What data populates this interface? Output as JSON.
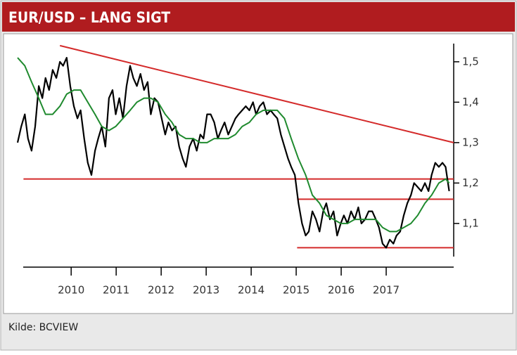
{
  "chart_data": {
    "type": "line",
    "title": "EUR/USD – LANG SIGT",
    "source": "Kilde: BCVIEW",
    "xlim": [
      2008.7,
      2018.5
    ],
    "ylim": [
      1.018,
      1.545
    ],
    "xticks": [
      2010,
      2011,
      2012,
      2013,
      2014,
      2015,
      2016,
      2017
    ],
    "yticks": [
      {
        "value": 1.1,
        "label": "1,1"
      },
      {
        "value": 1.2,
        "label": "1,2"
      },
      {
        "value": 1.3,
        "label": "1,3"
      },
      {
        "value": 1.4,
        "label": "1,4"
      },
      {
        "value": 1.5,
        "label": "1,5"
      }
    ],
    "series": [
      {
        "color": "#000000",
        "x": [
          2008.81,
          2008.89,
          2008.97,
          2009.04,
          2009.12,
          2009.2,
          2009.28,
          2009.36,
          2009.43,
          2009.51,
          2009.59,
          2009.67,
          2009.75,
          2009.82,
          2009.9,
          2009.98,
          2010.06,
          2010.14,
          2010.21,
          2010.29,
          2010.37,
          2010.45,
          2010.53,
          2010.6,
          2010.68,
          2010.76,
          2010.84,
          2010.92,
          2010.99,
          2011.07,
          2011.15,
          2011.23,
          2011.31,
          2011.38,
          2011.46,
          2011.54,
          2011.62,
          2011.7,
          2011.77,
          2011.85,
          2011.93,
          2012.01,
          2012.09,
          2012.16,
          2012.24,
          2012.32,
          2012.4,
          2012.48,
          2012.55,
          2012.63,
          2012.71,
          2012.79,
          2012.87,
          2012.94,
          2013.02,
          2013.1,
          2013.18,
          2013.26,
          2013.33,
          2013.41,
          2013.49,
          2013.57,
          2013.65,
          2013.72,
          2013.8,
          2013.88,
          2013.96,
          2014.04,
          2014.11,
          2014.19,
          2014.27,
          2014.35,
          2014.43,
          2014.5,
          2014.58,
          2014.66,
          2014.74,
          2014.82,
          2014.89,
          2014.97,
          2015.05,
          2015.13,
          2015.21,
          2015.28,
          2015.36,
          2015.44,
          2015.52,
          2015.6,
          2015.67,
          2015.75,
          2015.83,
          2015.91,
          2015.99,
          2016.06,
          2016.14,
          2016.22,
          2016.3,
          2016.38,
          2016.45,
          2016.53,
          2016.61,
          2016.69,
          2016.77,
          2016.84,
          2016.92,
          2017.0,
          2017.08,
          2017.16,
          2017.23,
          2017.31,
          2017.39,
          2017.47,
          2017.55,
          2017.62,
          2017.7,
          2017.78,
          2017.86,
          2017.94,
          2018.01,
          2018.09,
          2018.17,
          2018.25,
          2018.32,
          2018.4
        ],
        "values": [
          1.3,
          1.34,
          1.37,
          1.31,
          1.28,
          1.34,
          1.44,
          1.41,
          1.46,
          1.43,
          1.48,
          1.46,
          1.5,
          1.49,
          1.51,
          1.44,
          1.39,
          1.36,
          1.38,
          1.31,
          1.25,
          1.22,
          1.28,
          1.31,
          1.34,
          1.29,
          1.41,
          1.43,
          1.37,
          1.41,
          1.36,
          1.44,
          1.49,
          1.46,
          1.44,
          1.47,
          1.43,
          1.45,
          1.37,
          1.41,
          1.4,
          1.36,
          1.32,
          1.35,
          1.33,
          1.34,
          1.29,
          1.26,
          1.24,
          1.29,
          1.31,
          1.28,
          1.32,
          1.31,
          1.37,
          1.37,
          1.35,
          1.31,
          1.33,
          1.35,
          1.32,
          1.34,
          1.36,
          1.37,
          1.38,
          1.39,
          1.38,
          1.4,
          1.37,
          1.39,
          1.4,
          1.37,
          1.38,
          1.37,
          1.36,
          1.32,
          1.29,
          1.26,
          1.24,
          1.22,
          1.15,
          1.1,
          1.07,
          1.08,
          1.13,
          1.11,
          1.08,
          1.13,
          1.15,
          1.11,
          1.13,
          1.07,
          1.1,
          1.12,
          1.1,
          1.13,
          1.11,
          1.14,
          1.1,
          1.11,
          1.13,
          1.13,
          1.11,
          1.09,
          1.05,
          1.04,
          1.06,
          1.05,
          1.07,
          1.08,
          1.12,
          1.15,
          1.17,
          1.2,
          1.19,
          1.18,
          1.2,
          1.18,
          1.22,
          1.25,
          1.24,
          1.25,
          1.24,
          1.18
        ]
      },
      {
        "color": "#1f8a2e",
        "x": [
          2008.81,
          2008.97,
          2009.12,
          2009.28,
          2009.43,
          2009.59,
          2009.75,
          2009.9,
          2010.06,
          2010.21,
          2010.37,
          2010.53,
          2010.68,
          2010.84,
          2010.99,
          2011.15,
          2011.31,
          2011.46,
          2011.62,
          2011.77,
          2011.93,
          2012.09,
          2012.24,
          2012.4,
          2012.55,
          2012.71,
          2012.87,
          2013.02,
          2013.18,
          2013.33,
          2013.49,
          2013.65,
          2013.8,
          2013.96,
          2014.11,
          2014.27,
          2014.43,
          2014.58,
          2014.74,
          2014.89,
          2015.05,
          2015.21,
          2015.36,
          2015.52,
          2015.67,
          2015.83,
          2015.99,
          2016.14,
          2016.3,
          2016.45,
          2016.61,
          2016.77,
          2016.92,
          2017.08,
          2017.23,
          2017.39,
          2017.55,
          2017.7,
          2017.86,
          2018.01,
          2018.17,
          2018.32,
          2018.4
        ],
        "values": [
          1.51,
          1.49,
          1.45,
          1.41,
          1.37,
          1.37,
          1.39,
          1.42,
          1.43,
          1.43,
          1.4,
          1.37,
          1.34,
          1.33,
          1.34,
          1.36,
          1.38,
          1.4,
          1.41,
          1.41,
          1.4,
          1.37,
          1.35,
          1.32,
          1.31,
          1.31,
          1.3,
          1.3,
          1.31,
          1.31,
          1.31,
          1.32,
          1.34,
          1.35,
          1.37,
          1.38,
          1.38,
          1.38,
          1.36,
          1.31,
          1.26,
          1.22,
          1.17,
          1.15,
          1.12,
          1.11,
          1.1,
          1.1,
          1.11,
          1.11,
          1.11,
          1.11,
          1.09,
          1.08,
          1.08,
          1.09,
          1.1,
          1.12,
          1.15,
          1.17,
          1.2,
          1.21,
          1.2
        ]
      }
    ],
    "lines": [
      {
        "color": "#d42a2a",
        "x": [
          2009.75,
          2018.5
        ],
        "values": [
          1.54,
          1.3
        ]
      },
      {
        "color": "#d42a2a",
        "x": [
          2008.94,
          2018.5
        ],
        "values": [
          1.21,
          1.21
        ]
      },
      {
        "color": "#d42a2a",
        "x": [
          2015.02,
          2018.5
        ],
        "values": [
          1.16,
          1.16
        ]
      },
      {
        "color": "#d42a2a",
        "x": [
          2015.02,
          2018.5
        ],
        "values": [
          1.04,
          1.04
        ]
      }
    ]
  }
}
